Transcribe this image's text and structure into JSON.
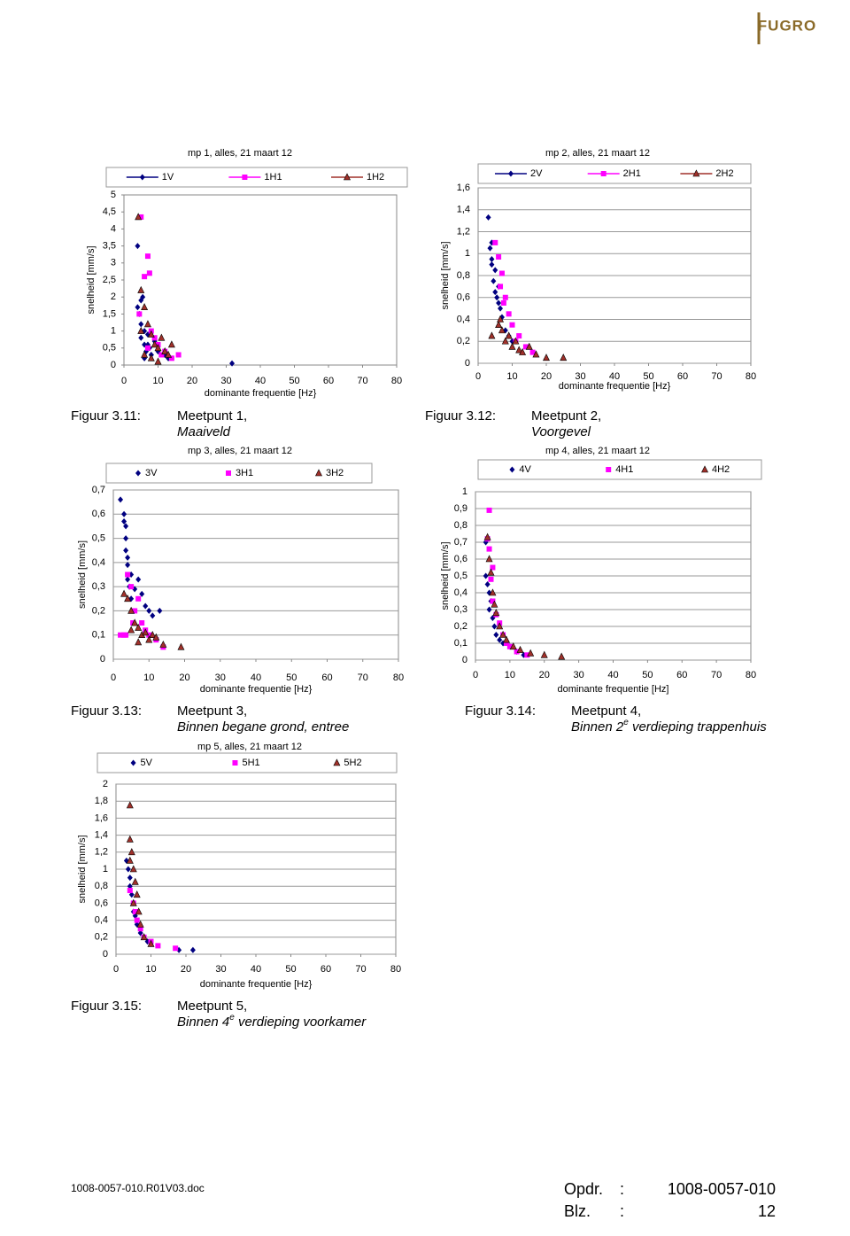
{
  "logo": "FUGRO",
  "chart_data": [
    {
      "type": "scatter",
      "title": "mp 1, alles, 21 maart 12",
      "x_label": "dominante frequentie [Hz}",
      "y_label": "snelheid [mm/s]",
      "grid": false,
      "legend_line": true,
      "xlim": [
        0,
        80
      ],
      "xticks": [
        0,
        10,
        20,
        30,
        40,
        50,
        60,
        70,
        80
      ],
      "ylim": [
        0,
        5
      ],
      "yticks": [
        0,
        {
          "value": 0.5,
          "label": "0,5"
        },
        1,
        {
          "value": 1.5,
          "label": "1,5"
        },
        2,
        {
          "value": 2.5,
          "label": "2,5"
        },
        3,
        {
          "value": 3.5,
          "label": "3,5"
        },
        4,
        {
          "value": 4.5,
          "label": "4,5"
        },
        5
      ],
      "series": [
        {
          "name": "1V",
          "color": "#000080",
          "marker": "diamond",
          "x": [
            4,
            4.5,
            5,
            5,
            5.5,
            6,
            6,
            6.5,
            7,
            7.5,
            8,
            9,
            10,
            12,
            13,
            4,
            5,
            6,
            7,
            8,
            31.7
          ],
          "values": [
            3.5,
            1.5,
            1.2,
            0.8,
            2,
            1,
            0.6,
            0.4,
            0.9,
            0.5,
            0.3,
            0.7,
            0.4,
            0.3,
            0.2,
            1.7,
            1.9,
            0.2,
            0.6,
            0.3,
            0.05
          ]
        },
        {
          "name": "1H1",
          "color": "#ff00ff",
          "marker": "square",
          "x": [
            5,
            6,
            7,
            7.5,
            8,
            9,
            10,
            12,
            16,
            4.5,
            7,
            11,
            14
          ],
          "values": [
            4.35,
            2.6,
            3.2,
            2.7,
            1,
            0.8,
            0.6,
            0.4,
            0.3,
            1.5,
            0.5,
            0.3,
            0.2
          ]
        },
        {
          "name": "1H2",
          "color": "#a0302a",
          "marker": "triangle",
          "x": [
            4.2,
            5,
            6,
            7,
            8,
            9,
            10,
            11,
            12,
            13,
            14,
            6,
            8,
            10,
            5
          ],
          "values": [
            4.35,
            2.2,
            1.7,
            1.2,
            0.9,
            0.6,
            0.5,
            0.8,
            0.4,
            0.3,
            0.6,
            0.3,
            0.2,
            0.1,
            1
          ]
        }
      ]
    },
    {
      "type": "scatter",
      "title": "mp 2, alles, 21 maart 12",
      "x_label": "dominante frequentie [Hz}",
      "y_label": "snelheid [mm/s]",
      "grid": true,
      "legend_line": true,
      "xlim": [
        0,
        80
      ],
      "xticks": [
        0,
        10,
        20,
        30,
        40,
        50,
        60,
        70,
        80
      ],
      "ylim": [
        0,
        1.6
      ],
      "yticks": [
        0,
        {
          "value": 0.2,
          "label": "0,2"
        },
        {
          "value": 0.4,
          "label": "0,4"
        },
        {
          "value": 0.6,
          "label": "0,6"
        },
        {
          "value": 0.8,
          "label": "0,8"
        },
        1,
        {
          "value": 1.2,
          "label": "1,2"
        },
        {
          "value": 1.4,
          "label": "1,4"
        },
        {
          "value": 1.6,
          "label": "1,6"
        }
      ],
      "series": [
        {
          "name": "2V",
          "color": "#000080",
          "marker": "diamond",
          "x": [
            3,
            3.5,
            4,
            4,
            4.5,
            5,
            5,
            5.5,
            6,
            6.5,
            7,
            8,
            9,
            10,
            4,
            6
          ],
          "values": [
            1.33,
            1.05,
            0.95,
            0.9,
            0.75,
            0.85,
            0.65,
            0.6,
            0.55,
            0.5,
            0.42,
            0.3,
            0.25,
            0.2,
            1.1,
            0.7
          ]
        },
        {
          "name": "2H1",
          "color": "#ff00ff",
          "marker": "square",
          "x": [
            6,
            7,
            5,
            8,
            6.5,
            9,
            10,
            12,
            14,
            16,
            7.5,
            11
          ],
          "values": [
            0.97,
            0.82,
            1.1,
            0.6,
            0.7,
            0.45,
            0.35,
            0.25,
            0.15,
            0.1,
            0.55,
            0.2
          ]
        },
        {
          "name": "2H2",
          "color": "#a0302a",
          "marker": "triangle",
          "x": [
            4,
            6,
            7,
            8,
            9,
            10,
            11,
            12,
            13,
            15,
            17,
            20,
            25,
            6.5
          ],
          "values": [
            0.25,
            0.35,
            0.3,
            0.2,
            0.25,
            0.15,
            0.2,
            0.12,
            0.1,
            0.15,
            0.08,
            0.05,
            0.05,
            0.4
          ]
        }
      ]
    },
    {
      "type": "scatter",
      "title": "mp 3, alles, 21 maart 12",
      "x_label": "dominante frequentie [Hz}",
      "y_label": "snelheid [mm/s]",
      "grid": true,
      "legend_line": false,
      "xlim": [
        0,
        80
      ],
      "xticks": [
        0,
        10,
        20,
        30,
        40,
        50,
        60,
        70,
        80
      ],
      "ylim": [
        0,
        0.7
      ],
      "yticks": [
        0,
        {
          "value": 0.1,
          "label": "0,1"
        },
        {
          "value": 0.2,
          "label": "0,2"
        },
        {
          "value": 0.3,
          "label": "0,3"
        },
        {
          "value": 0.4,
          "label": "0,4"
        },
        {
          "value": 0.5,
          "label": "0,5"
        },
        {
          "value": 0.6,
          "label": "0,6"
        },
        {
          "value": 0.7,
          "label": "0,7"
        }
      ],
      "series": [
        {
          "name": "3V",
          "color": "#000080",
          "marker": "diamond",
          "x": [
            2,
            3,
            3,
            3.5,
            3.5,
            3.5,
            4,
            4,
            4.5,
            5,
            6,
            7,
            8,
            9,
            10,
            11,
            13,
            4,
            5
          ],
          "values": [
            0.66,
            0.6,
            0.57,
            0.55,
            0.5,
            0.45,
            0.42,
            0.33,
            0.3,
            0.35,
            0.29,
            0.33,
            0.27,
            0.22,
            0.2,
            0.18,
            0.2,
            0.39,
            0.25
          ]
        },
        {
          "name": "3H1",
          "color": "#ff00ff",
          "marker": "square",
          "x": [
            2,
            3,
            4,
            5,
            6,
            7,
            8,
            10,
            12,
            14,
            3.5,
            9,
            5.5
          ],
          "values": [
            0.1,
            0.1,
            0.35,
            0.3,
            0.2,
            0.25,
            0.15,
            0.1,
            0.08,
            0.05,
            0.1,
            0.12,
            0.15
          ]
        },
        {
          "name": "3H2",
          "color": "#a0302a",
          "marker": "triangle",
          "x": [
            3,
            4,
            5,
            6,
            7,
            8,
            9,
            10,
            11,
            12,
            14,
            19,
            5,
            7
          ],
          "values": [
            0.27,
            0.25,
            0.2,
            0.15,
            0.13,
            0.1,
            0.11,
            0.08,
            0.1,
            0.09,
            0.06,
            0.05,
            0.12,
            0.07
          ]
        }
      ]
    },
    {
      "type": "scatter",
      "title": "mp 4, alles, 21 maart 12",
      "x_label": "dominante frequentie [Hz]",
      "y_label": "snelheid [mm/s]",
      "grid": true,
      "legend_line": false,
      "xlim": [
        0,
        80
      ],
      "xticks": [
        0,
        10,
        20,
        30,
        40,
        50,
        60,
        70,
        80
      ],
      "ylim": [
        0,
        1
      ],
      "yticks": [
        0,
        {
          "value": 0.1,
          "label": "0,1"
        },
        {
          "value": 0.2,
          "label": "0,2"
        },
        {
          "value": 0.3,
          "label": "0,3"
        },
        {
          "value": 0.4,
          "label": "0,4"
        },
        {
          "value": 0.5,
          "label": "0,5"
        },
        {
          "value": 0.6,
          "label": "0,6"
        },
        {
          "value": 0.7,
          "label": "0,7"
        },
        {
          "value": 0.8,
          "label": "0,8"
        },
        {
          "value": 0.9,
          "label": "0,9"
        },
        1
      ],
      "series": [
        {
          "name": "4V",
          "color": "#000080",
          "marker": "diamond",
          "x": [
            3,
            3,
            3.5,
            4,
            4,
            4.5,
            5,
            5.5,
            6,
            7,
            8,
            10,
            12,
            14
          ],
          "values": [
            0.7,
            0.5,
            0.45,
            0.4,
            0.3,
            0.35,
            0.25,
            0.2,
            0.15,
            0.12,
            0.1,
            0.08,
            0.05,
            0.03
          ]
        },
        {
          "name": "4H1",
          "color": "#ff00ff",
          "marker": "square",
          "x": [
            4,
            3.5,
            4,
            5,
            4.5,
            5,
            6,
            7,
            8,
            9,
            10,
            12,
            15
          ],
          "values": [
            0.89,
            0.72,
            0.66,
            0.55,
            0.48,
            0.35,
            0.27,
            0.22,
            0.15,
            0.1,
            0.08,
            0.05,
            0.03
          ]
        },
        {
          "name": "4H2",
          "color": "#a0302a",
          "marker": "triangle",
          "x": [
            3.5,
            4,
            4.5,
            5,
            5.5,
            6,
            7,
            8,
            9,
            11,
            13,
            16,
            20,
            25
          ],
          "values": [
            0.73,
            0.6,
            0.52,
            0.4,
            0.33,
            0.28,
            0.2,
            0.15,
            0.12,
            0.08,
            0.06,
            0.04,
            0.03,
            0.02
          ]
        }
      ]
    },
    {
      "type": "scatter",
      "title": "mp 5, alles, 21 maart 12",
      "x_label": "dominante frequentie [Hz}",
      "y_label": "snelheid [mm/s]",
      "grid": true,
      "legend_line": false,
      "xlim": [
        0,
        80
      ],
      "xticks": [
        0,
        10,
        20,
        30,
        40,
        50,
        60,
        70,
        80
      ],
      "ylim": [
        0,
        2
      ],
      "yticks": [
        0,
        {
          "value": 0.2,
          "label": "0,2"
        },
        {
          "value": 0.4,
          "label": "0,4"
        },
        {
          "value": 0.6,
          "label": "0,6"
        },
        {
          "value": 0.8,
          "label": "0,8"
        },
        1,
        {
          "value": 1.2,
          "label": "1,2"
        },
        {
          "value": 1.4,
          "label": "1,4"
        },
        {
          "value": 1.6,
          "label": "1,6"
        },
        {
          "value": 1.8,
          "label": "1,8"
        },
        2
      ],
      "series": [
        {
          "name": "5V",
          "color": "#000080",
          "marker": "diamond",
          "x": [
            3,
            3.5,
            4,
            4,
            4.5,
            5,
            5,
            5.5,
            6,
            7,
            9,
            18,
            22
          ],
          "values": [
            1.1,
            1.0,
            0.9,
            0.8,
            0.7,
            0.6,
            0.5,
            0.45,
            0.35,
            0.25,
            0.15,
            0.05,
            0.05
          ]
        },
        {
          "name": "5H1",
          "color": "#ff00ff",
          "marker": "square",
          "x": [
            4,
            5,
            5.5,
            6,
            7,
            8,
            10,
            12,
            17
          ],
          "values": [
            0.75,
            0.6,
            0.5,
            0.4,
            0.3,
            0.2,
            0.15,
            0.1,
            0.07
          ]
        },
        {
          "name": "5H2",
          "color": "#a0302a",
          "marker": "triangle",
          "x": [
            4,
            4,
            4.5,
            4,
            5,
            5.5,
            6,
            5,
            6.5,
            7,
            8,
            10
          ],
          "values": [
            1.75,
            1.35,
            1.2,
            1.1,
            1.0,
            0.85,
            0.7,
            0.6,
            0.5,
            0.35,
            0.2,
            0.12
          ]
        }
      ]
    }
  ],
  "captions": [
    {
      "figure": "Figuur 3.11:",
      "line1": "Meetpunt 1,",
      "line2": [
        "Maaiveld"
      ]
    },
    {
      "figure": "Figuur 3.12:",
      "line1": "Meetpunt 2,",
      "line2": [
        "Voorgevel"
      ]
    },
    {
      "figure": "Figuur 3.13:",
      "line1": "Meetpunt 3,",
      "line2": [
        "Binnen begane grond, entree"
      ]
    },
    {
      "figure": "Figuur 3.14:",
      "line1": "Meetpunt 4,",
      "line2": [
        "Binnen 2",
        "e",
        " verdieping trappenhuis"
      ]
    },
    {
      "figure": "Figuur 3.15:",
      "line1": "Meetpunt 5,",
      "line2": [
        "Binnen 4",
        "e",
        " verdieping voorkamer"
      ]
    }
  ],
  "footer": {
    "file": "1008-0057-010.R01V03.doc",
    "rows": [
      [
        "Opdr.",
        ":",
        "1008-0057-010"
      ],
      [
        "Blz.",
        ":",
        "12"
      ]
    ]
  }
}
